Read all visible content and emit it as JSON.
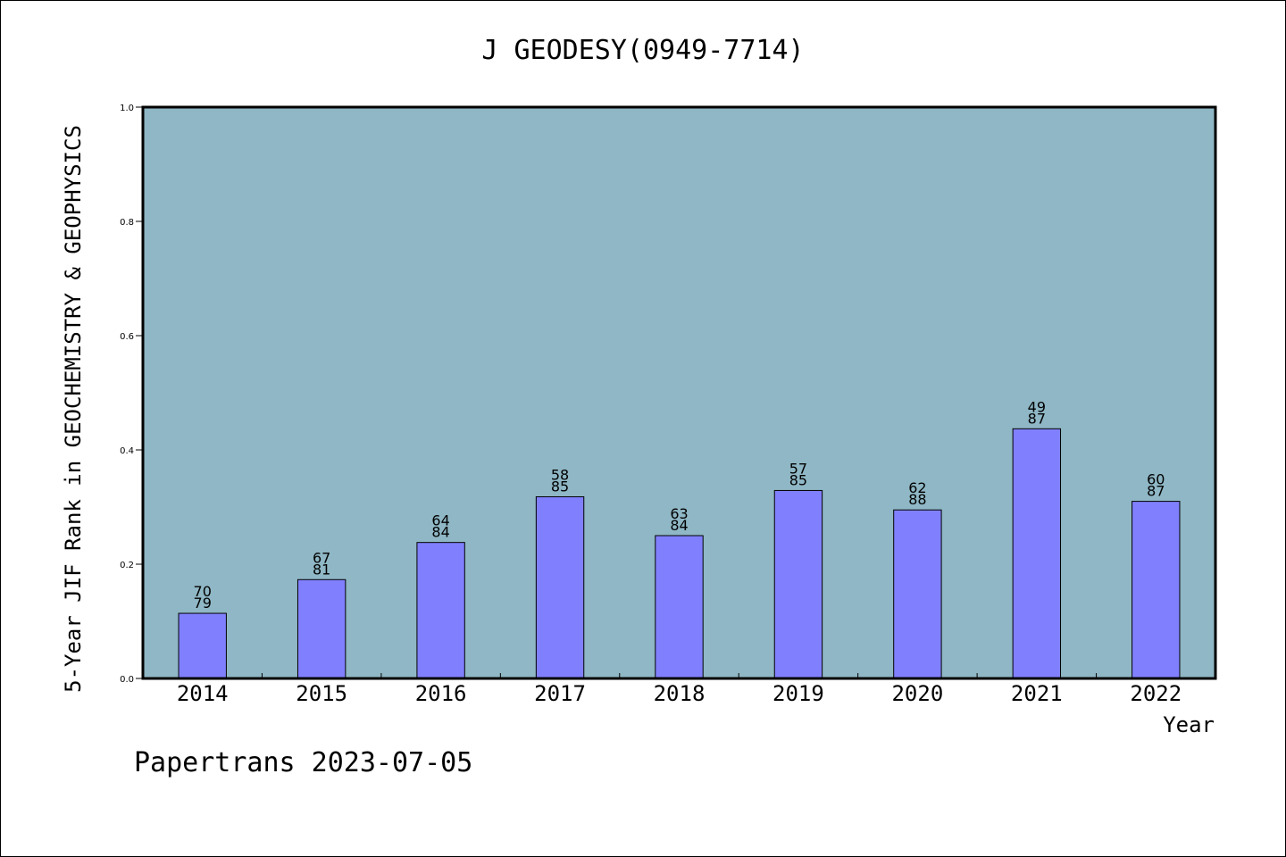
{
  "chart_data": {
    "type": "bar",
    "title": "J GEODESY(0949-7714)",
    "xlabel": "Year",
    "ylabel": "5-Year JIF Rank in GEOCHEMISTRY & GEOPHYSICS",
    "categories": [
      "2014",
      "2015",
      "2016",
      "2017",
      "2018",
      "2019",
      "2020",
      "2021",
      "2022"
    ],
    "values": [
      0.114,
      0.173,
      0.238,
      0.318,
      0.25,
      0.329,
      0.295,
      0.437,
      0.31
    ],
    "data_labels": [
      {
        "rank": "70",
        "total": "79"
      },
      {
        "rank": "67",
        "total": "81"
      },
      {
        "rank": "64",
        "total": "84"
      },
      {
        "rank": "58",
        "total": "85"
      },
      {
        "rank": "63",
        "total": "84"
      },
      {
        "rank": "57",
        "total": "85"
      },
      {
        "rank": "62",
        "total": "88"
      },
      {
        "rank": "49",
        "total": "87"
      },
      {
        "rank": "60",
        "total": "87"
      }
    ],
    "ylim": [
      0,
      1
    ],
    "yticks": [
      "0.0",
      "0.2",
      "0.4",
      "0.6",
      "0.8",
      "1.0"
    ],
    "grid": false,
    "legend": "none",
    "colors": {
      "plot_background": "#8fb7c5",
      "bar_fill": "#8080ff",
      "bar_stroke": "#000000",
      "text": "#000000"
    }
  },
  "footer": {
    "watermark": "Papertrans 2023-07-05"
  }
}
